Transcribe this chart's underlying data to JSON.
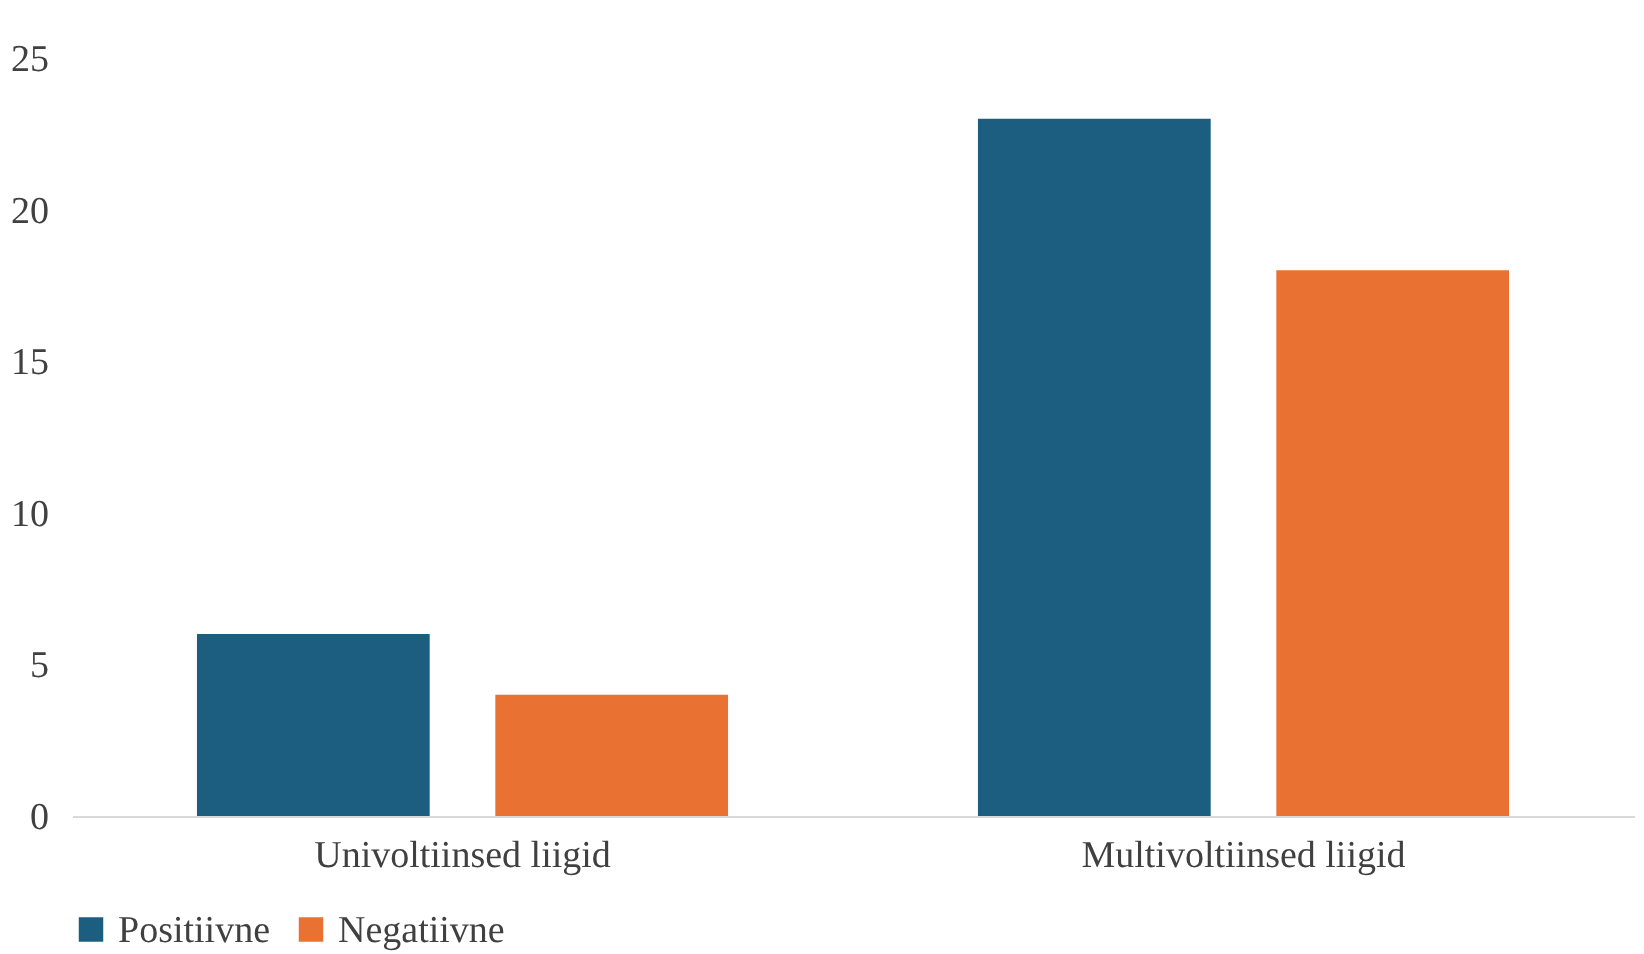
{
  "chart_data": {
    "type": "bar",
    "categories": [
      "Univoltiinsed liigid",
      "Multivoltiinsed liigid"
    ],
    "series": [
      {
        "name": "Positiivne",
        "color": "#1b5e80",
        "values": [
          6,
          23
        ]
      },
      {
        "name": "Negatiivne",
        "color": "#e97132",
        "values": [
          4,
          18
        ]
      }
    ],
    "ylim": [
      0,
      25
    ],
    "yticks": [
      0,
      5,
      10,
      15,
      20,
      25
    ],
    "grid": false,
    "legend": "bottom"
  }
}
